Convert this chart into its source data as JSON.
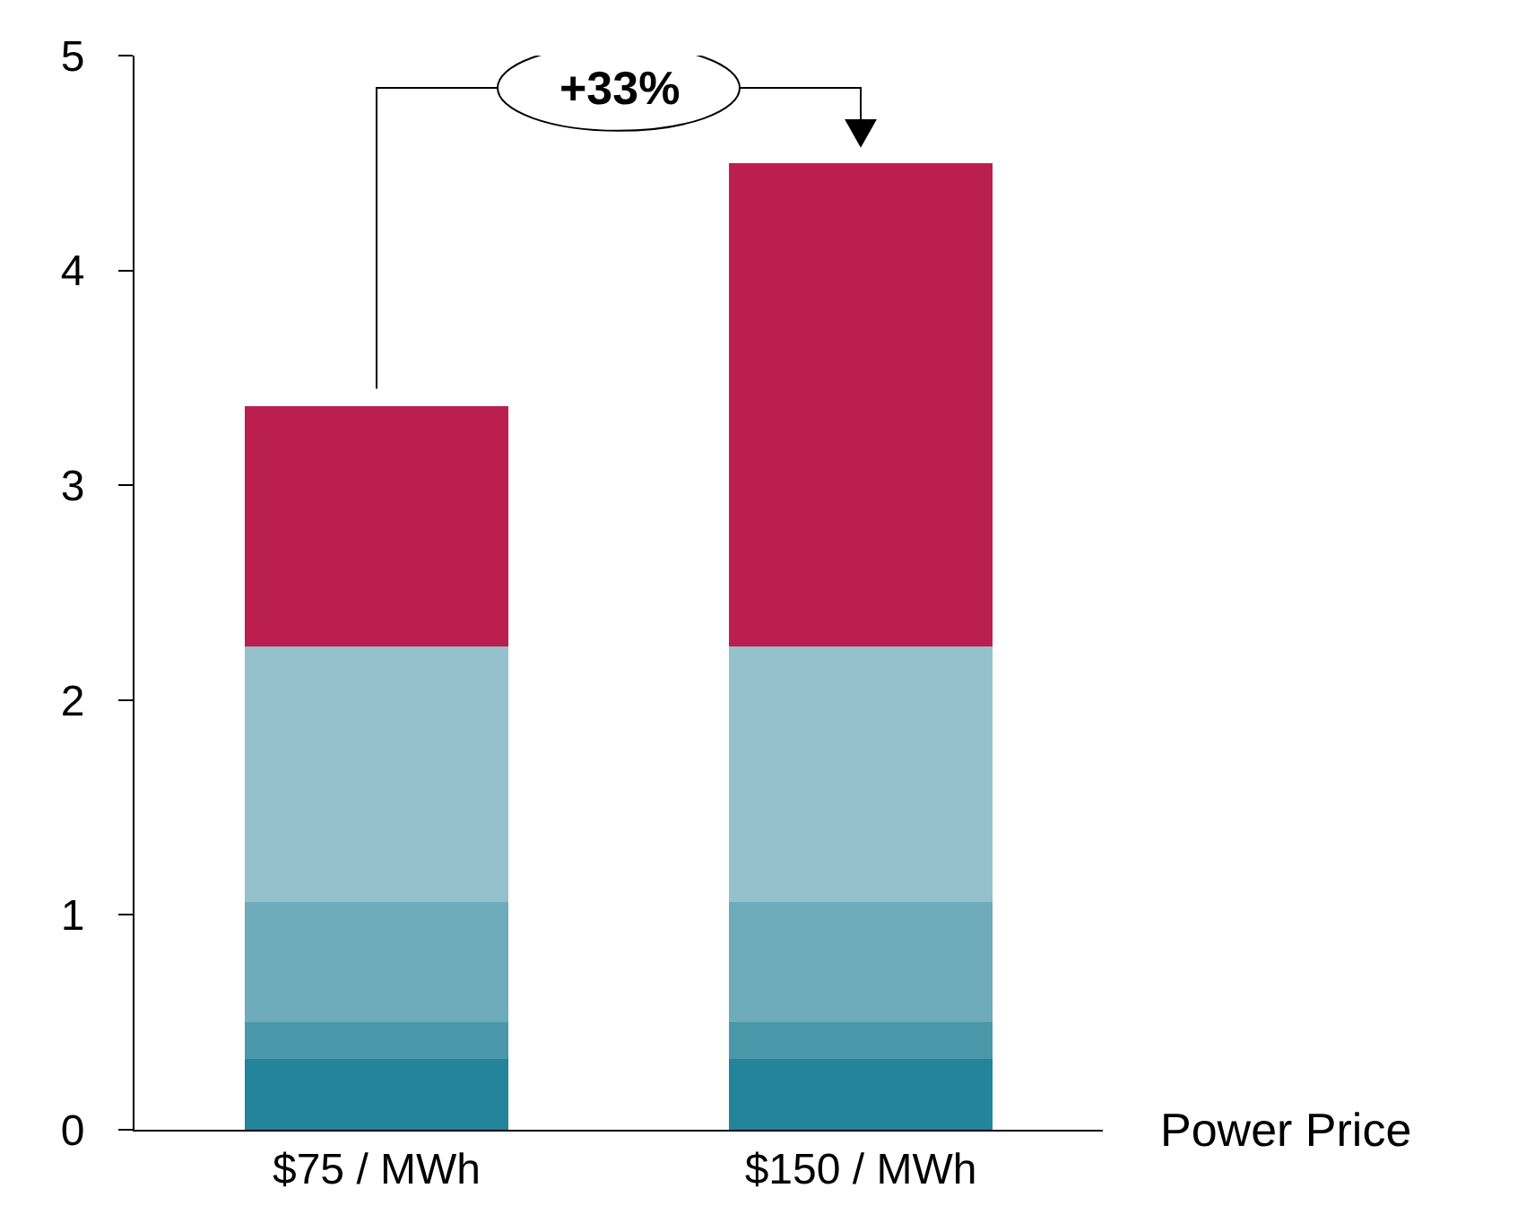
{
  "chart_data": {
    "type": "bar",
    "stacked": true,
    "xlabel": "Power Price",
    "categories": [
      "$75 / MWh",
      "$150 / MWh"
    ],
    "series": [
      {
        "color": "#23849c",
        "values": [
          0.33,
          0.33
        ]
      },
      {
        "color": "#4a98aa",
        "values": [
          0.17,
          0.17
        ]
      },
      {
        "color": "#6eabbb",
        "values": [
          0.56,
          0.56
        ]
      },
      {
        "color": "#95c1cd",
        "values": [
          1.19,
          1.19
        ]
      },
      {
        "color": "#bb1f50",
        "values": [
          1.12,
          2.25
        ]
      }
    ],
    "ylim": [
      0,
      5
    ],
    "yticks": [
      0,
      1,
      2,
      3,
      4,
      5
    ],
    "grid": false,
    "annotations": [
      "+33%"
    ]
  }
}
